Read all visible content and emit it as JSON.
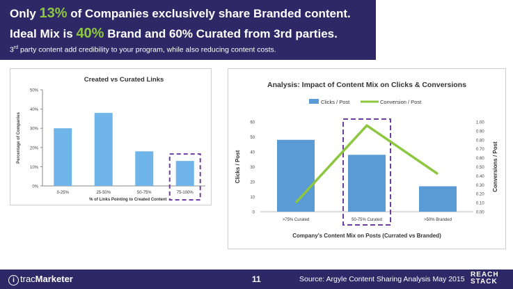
{
  "header": {
    "line1_pre": "Only ",
    "line1_pct": "13%",
    "line1_post": " of Companies exclusively share Branded content.",
    "line2_pre": "Ideal Mix is ",
    "line2_pct": "40%",
    "line2_post": " Brand and 60% Curated from 3rd parties.",
    "line3_pre": "3",
    "line3_sup": "rd",
    "line3_post": " party content add credibility to your program, while also reducing content costs."
  },
  "footer": {
    "logo_icon": "i",
    "logo_prefix": "trac",
    "logo_name": "Marketer",
    "page": "11",
    "source": "Source: Argyle Content Sharing Analysis May 2015",
    "brand_line1": "REACH",
    "brand_line2": "STACK"
  },
  "chart_data": [
    {
      "type": "bar",
      "title": "Created vs Curated Links",
      "xlabel": "% of Links Pointing to Created Content",
      "ylabel": "Percentage of Companies",
      "categories": [
        "0-25%",
        "25-50%",
        "50-75%",
        "75-100%"
      ],
      "values": [
        30,
        38,
        18,
        13
      ],
      "ylim": [
        0,
        50
      ],
      "yticks": [
        "0%",
        "10%",
        "20%",
        "30%",
        "40%",
        "50%"
      ],
      "grid": false,
      "highlight_category": "75-100%",
      "colors": {
        "bar": "#6fb5ea",
        "highlight": "#6b3fa0"
      }
    },
    {
      "type": "bar+line",
      "title": "Analysis: Impact of Content Mix on Clicks & Conversions",
      "xlabel": "Company's Content Mix on Posts (Currated vs Branded)",
      "ylabel": "Clicks / Post",
      "y2label": "Conversions / Post",
      "categories": [
        ">75% Curated",
        "50-75% Curated",
        ">50% Branded"
      ],
      "series": [
        {
          "name": "Clicks / Post",
          "type": "bar",
          "axis": "left",
          "values": [
            48,
            38,
            17
          ]
        },
        {
          "name": "Conversion / Post",
          "type": "line",
          "axis": "right",
          "values": [
            0.1,
            0.96,
            0.42
          ]
        }
      ],
      "ylim": [
        0,
        60
      ],
      "y2lim": [
        0,
        1
      ],
      "yticks": [
        "0",
        "10",
        "20",
        "30",
        "40",
        "50",
        "60"
      ],
      "y2ticks": [
        "0.00",
        "0.10",
        "0.20",
        "0.30",
        "0.40",
        "0.50",
        "0.60",
        "0.70",
        "0.80",
        "0.90",
        "1.00"
      ],
      "legend": "top",
      "grid": false,
      "highlight_category": "50-75% Curated",
      "colors": {
        "bar": "#5b9bd5",
        "line": "#8dc63f",
        "highlight": "#6b3fa0"
      }
    }
  ]
}
